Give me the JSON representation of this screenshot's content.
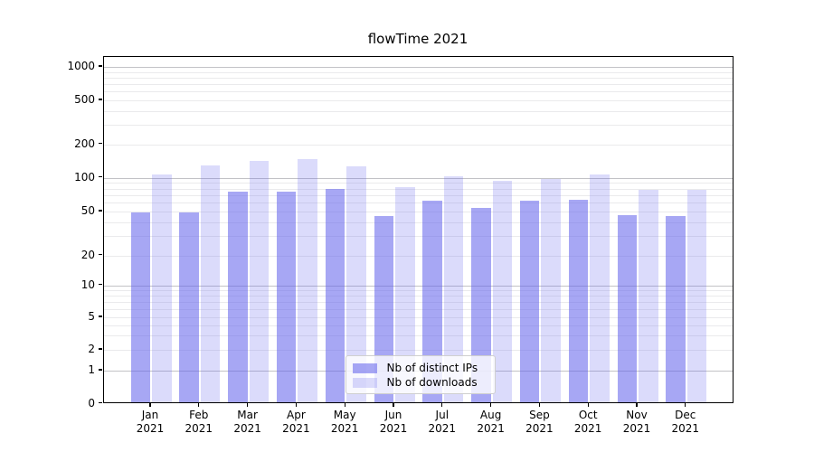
{
  "title": "flowTime 2021",
  "chart_data": {
    "type": "bar",
    "title": "flowTime 2021",
    "categories": [
      "Jan 2021",
      "Feb 2021",
      "Mar 2021",
      "Apr 2021",
      "May 2021",
      "Jun 2021",
      "Jul 2021",
      "Aug 2021",
      "Sep 2021",
      "Oct 2021",
      "Nov 2021",
      "Dec 2021"
    ],
    "series": [
      {
        "name": "Nb of distinct IPs",
        "color": "rgba(98,98,236,0.56)",
        "color_hex": "#a7a7f2",
        "values": [
          47,
          47,
          72,
          72,
          76,
          44,
          60,
          52,
          60,
          61,
          45,
          44
        ]
      },
      {
        "name": "Nb of downloads",
        "color": "rgba(98,98,236,0.23)",
        "color_hex": "#dbdbf8",
        "values": [
          103,
          124,
          137,
          141,
          122,
          79,
          99,
          91,
          93,
          102,
          75,
          75
        ]
      }
    ],
    "yscale": "symlog",
    "ytick_labels": [
      "0",
      "1",
      "2",
      "5",
      "10",
      "20",
      "50",
      "100",
      "200",
      "500",
      "1000"
    ],
    "ytick_values": [
      0,
      1,
      2,
      5,
      10,
      20,
      50,
      100,
      200,
      500,
      1000
    ],
    "ylim": [
      0,
      1250
    ],
    "grid": "both",
    "legend_position": "lower center"
  }
}
